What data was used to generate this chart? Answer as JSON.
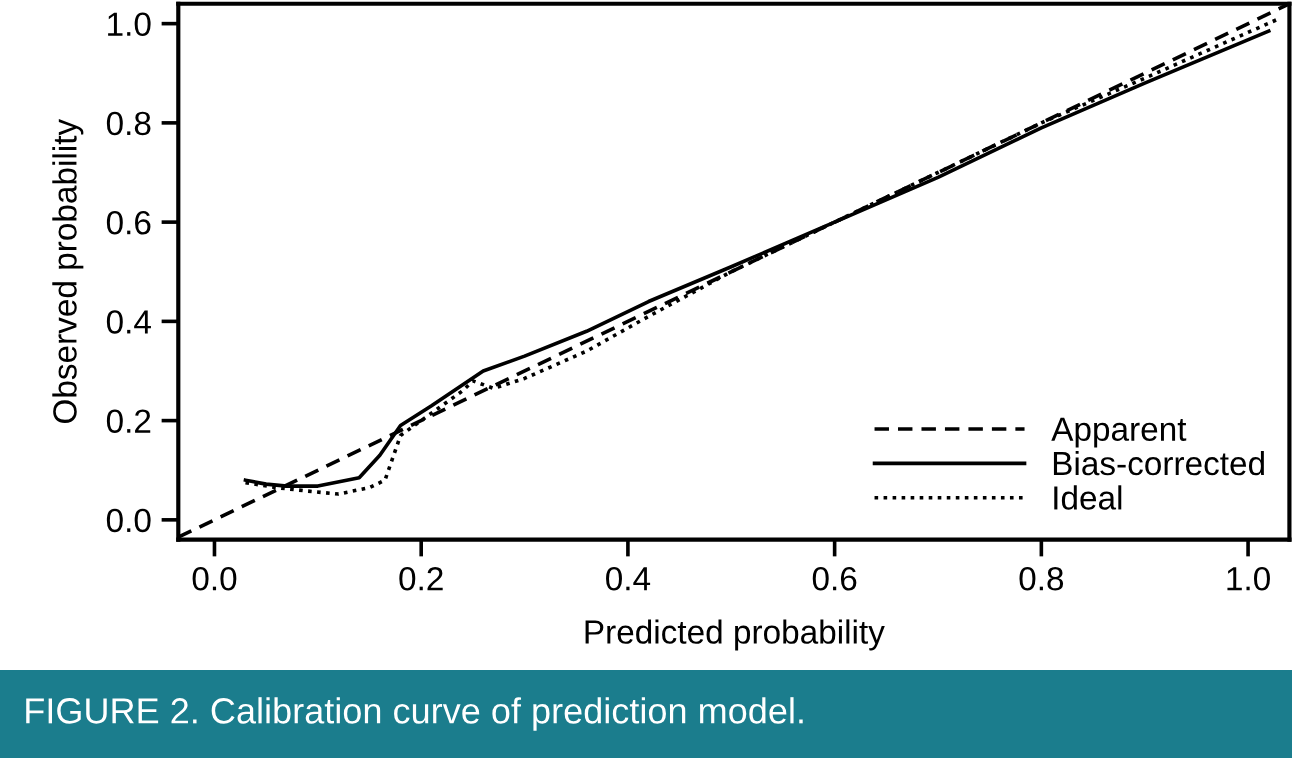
{
  "chart_data": {
    "type": "line",
    "xlabel": "Predicted probability",
    "ylabel": "Observed probability",
    "xlim": [
      -0.035,
      1.04
    ],
    "ylim": [
      -0.04,
      1.04
    ],
    "xticks": [
      {
        "value": 0,
        "label": "0.0"
      },
      0.2,
      0.4,
      0.6,
      0.8,
      {
        "value": 1,
        "label": "1.0"
      }
    ],
    "yticks": [
      {
        "value": 0,
        "label": "0.0"
      },
      0.2,
      0.4,
      0.6,
      0.8,
      {
        "value": 1,
        "label": "1.0"
      }
    ],
    "grid": false,
    "legend": "bottom right",
    "marker": "none",
    "series": [
      {
        "name": "Apparent",
        "color": "#000000",
        "line_style": "dashed",
        "x": [
          -0.035,
          1.04
        ],
        "values": [
          -0.035,
          1.04
        ]
      },
      {
        "name": "Bias-corrected",
        "color": "#000000",
        "line_style": "solid",
        "x": [
          0.03,
          0.05,
          0.07,
          0.1,
          0.14,
          0.16,
          0.18,
          0.21,
          0.26,
          0.3,
          0.36,
          0.42,
          0.5,
          0.6,
          0.7,
          0.8,
          0.9,
          1.02
        ],
        "values": [
          0.08,
          0.072,
          0.068,
          0.068,
          0.085,
          0.13,
          0.19,
          0.23,
          0.3,
          0.33,
          0.38,
          0.44,
          0.51,
          0.6,
          0.69,
          0.79,
          0.88,
          0.985
        ]
      },
      {
        "name": "Ideal",
        "color": "#000000",
        "line_style": "dotted",
        "x": [
          0.03,
          0.06,
          0.09,
          0.12,
          0.15,
          0.165,
          0.18,
          0.2,
          0.24,
          0.25,
          0.27,
          0.3,
          0.36,
          0.42,
          0.5,
          0.6,
          0.7,
          0.8,
          0.9,
          1.03
        ],
        "values": [
          0.075,
          0.065,
          0.058,
          0.052,
          0.065,
          0.08,
          0.17,
          0.2,
          0.26,
          0.28,
          0.265,
          0.285,
          0.34,
          0.41,
          0.5,
          0.6,
          0.7,
          0.8,
          0.89,
          1.01
        ]
      }
    ],
    "annotations": [
      "FIGURE 2. Calibration curve of prediction model."
    ]
  }
}
